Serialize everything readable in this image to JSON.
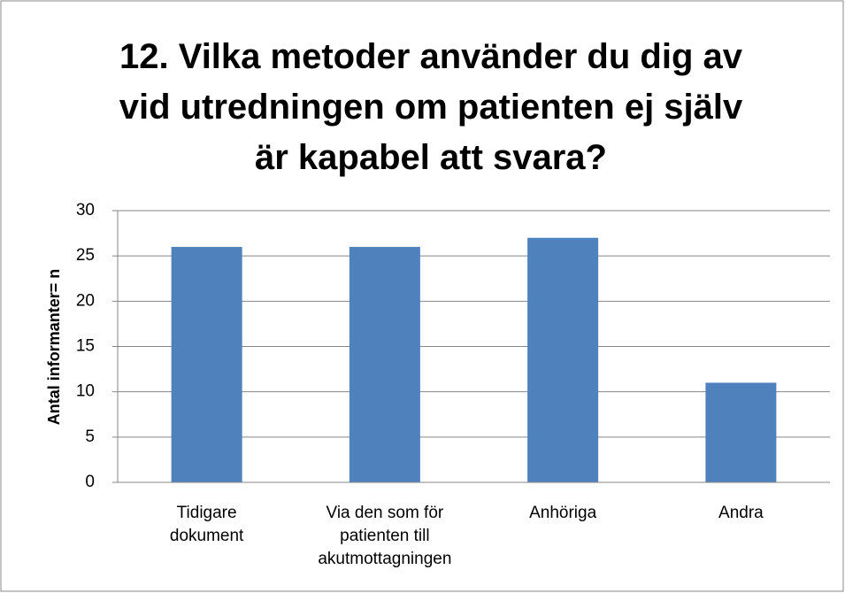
{
  "chart_data": {
    "type": "bar",
    "title": "12.  Vilka metoder använder du dig av vid utredningen om patienten ej själv är kapabel att svara?",
    "ylabel": "Antal informanter= n",
    "categories": [
      "Tidigare\ndokument",
      "Via den som för\npatienten till\nakutmottagningen",
      "Anhöriga",
      "Andra"
    ],
    "values": [
      26,
      26,
      27,
      11
    ],
    "color": "#4f81bd",
    "ylim": [
      0,
      30
    ],
    "yticks": [
      0,
      5,
      10,
      15,
      20,
      25,
      30
    ],
    "grid": true
  }
}
